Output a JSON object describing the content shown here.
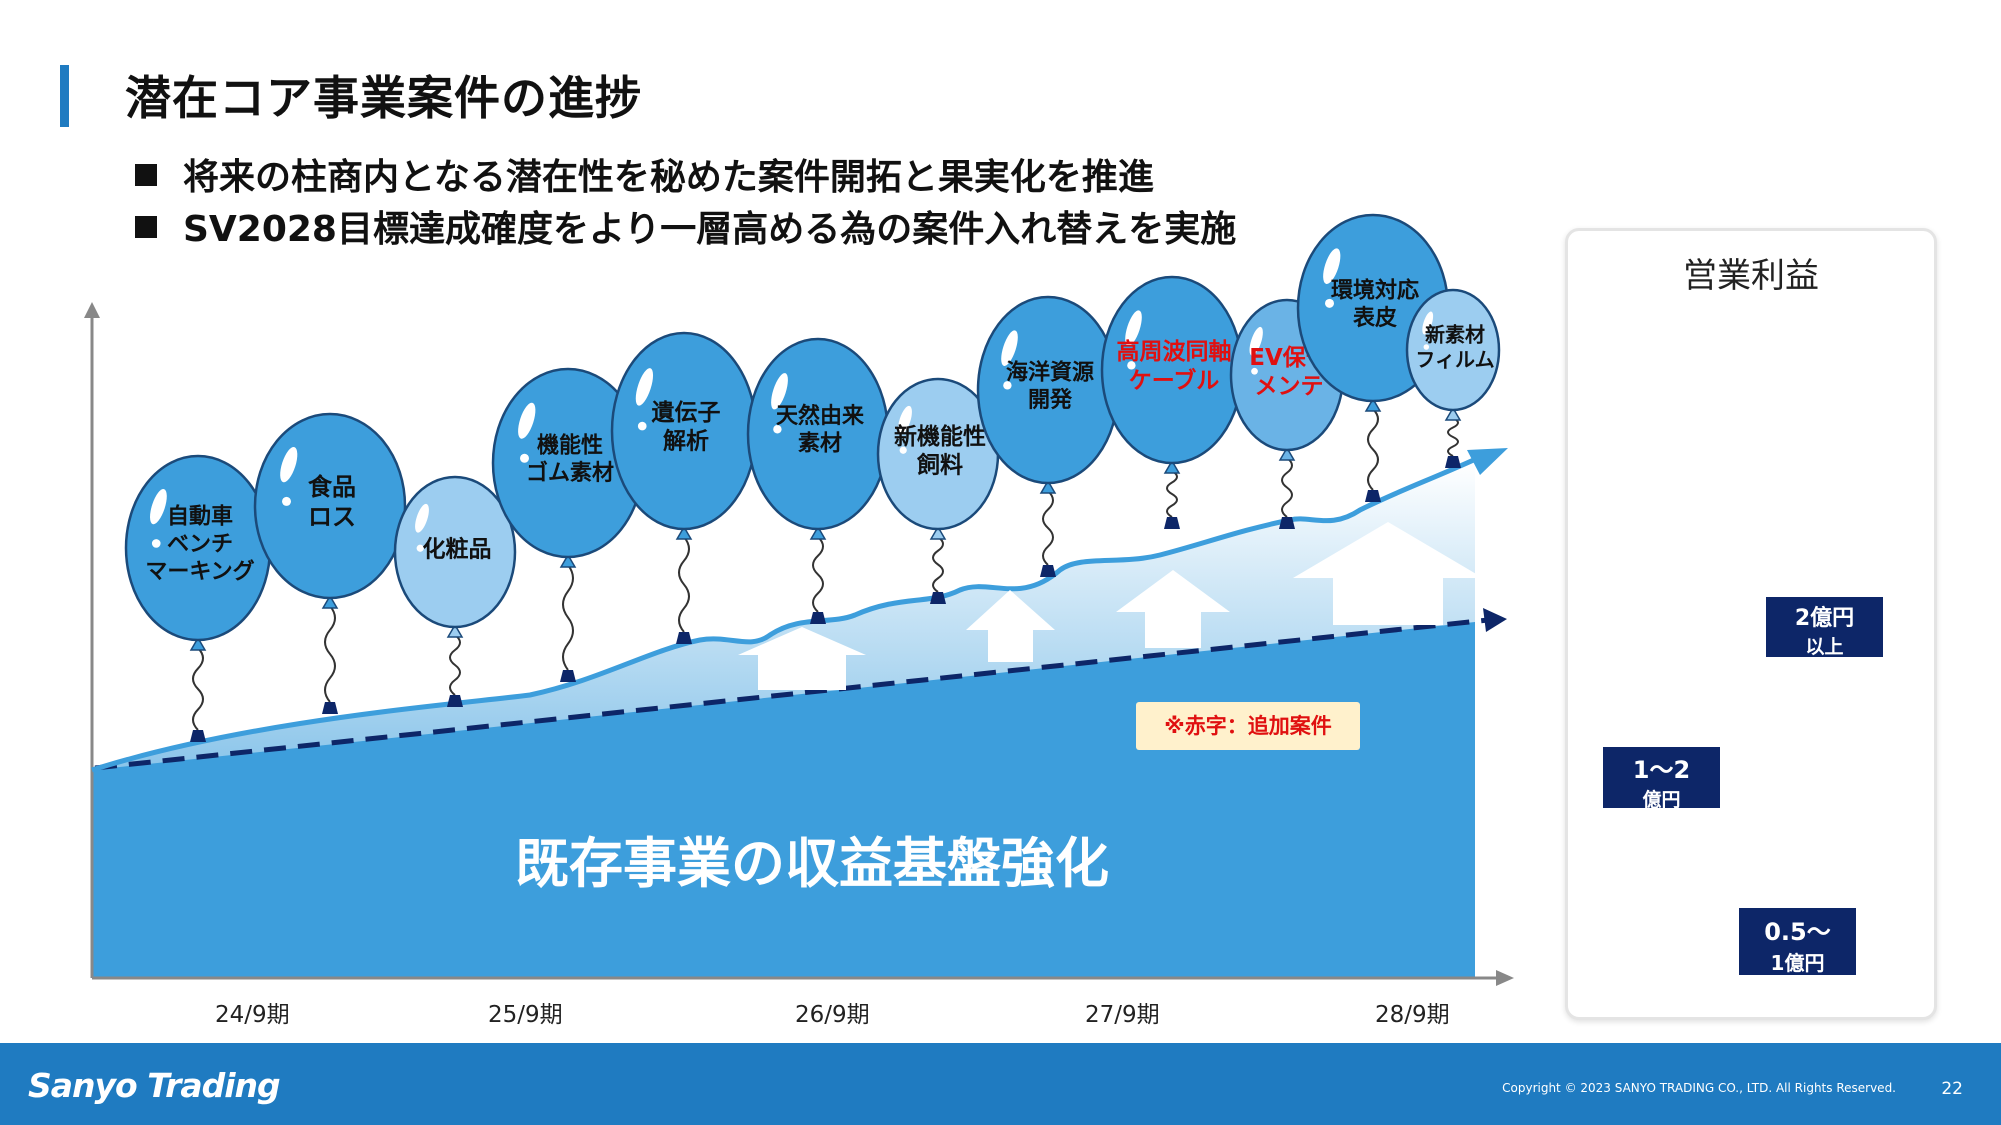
{
  "title": "潜在コア事業案件の進捗",
  "bullets": [
    "将来の柱商内となる潜在性を秘めた案件開拓と果実化を推進",
    "SV2028目標達成確度をより一層高める為の案件入れ替えを実施"
  ],
  "base_label": "既存事業の収益基盤強化",
  "note": "※赤字：追加案件",
  "periods": [
    "24/9期",
    "25/9期",
    "26/9期",
    "27/9期",
    "28/9期"
  ],
  "balloons": [
    {
      "label": "自動車\nベンチ\nマーキング",
      "size": "large",
      "added": false
    },
    {
      "label": "食品\nロス",
      "size": "large",
      "added": false
    },
    {
      "label": "化粧品",
      "size": "small",
      "added": false
    },
    {
      "label": "機能性\nゴム素材",
      "size": "large",
      "added": false
    },
    {
      "label": "遺伝子\n解析",
      "size": "large",
      "added": false
    },
    {
      "label": "天然由来\n素材",
      "size": "large",
      "added": false
    },
    {
      "label": "新機能性\n飼料",
      "size": "small",
      "added": false
    },
    {
      "label": "海洋資源\n開発",
      "size": "large",
      "added": false
    },
    {
      "label": "高周波同軸\nケーブル",
      "size": "large",
      "added": true
    },
    {
      "label": "EV保守\nメンテ",
      "size": "medium",
      "added": true
    },
    {
      "label": "環境対応\n表皮",
      "size": "large",
      "added": false
    },
    {
      "label": "新素材\nフィルム",
      "size": "small",
      "added": false
    }
  ],
  "legend": {
    "title": "営業利益",
    "items": [
      {
        "size": "large",
        "value_line1": "2億円",
        "value_line2": "以上"
      },
      {
        "size": "medium",
        "value_line1": "1〜2",
        "value_line2": "億円"
      },
      {
        "size": "small",
        "value_line1": "0.5〜",
        "value_line2": "1億円"
      }
    ]
  },
  "footer": {
    "logo": "Sanyo Trading",
    "copyright": "Copyright © 2023 SANYO TRADING CO., LTD. All Rights Reserved.",
    "page": "22"
  },
  "colors": {
    "accent": "#1f7bc1",
    "balloon_large": "#3d9edc",
    "balloon_medium": "#6ab3e6",
    "balloon_small": "#9ccdf0",
    "navy": "#0d2668",
    "red_label": "#e01010"
  }
}
